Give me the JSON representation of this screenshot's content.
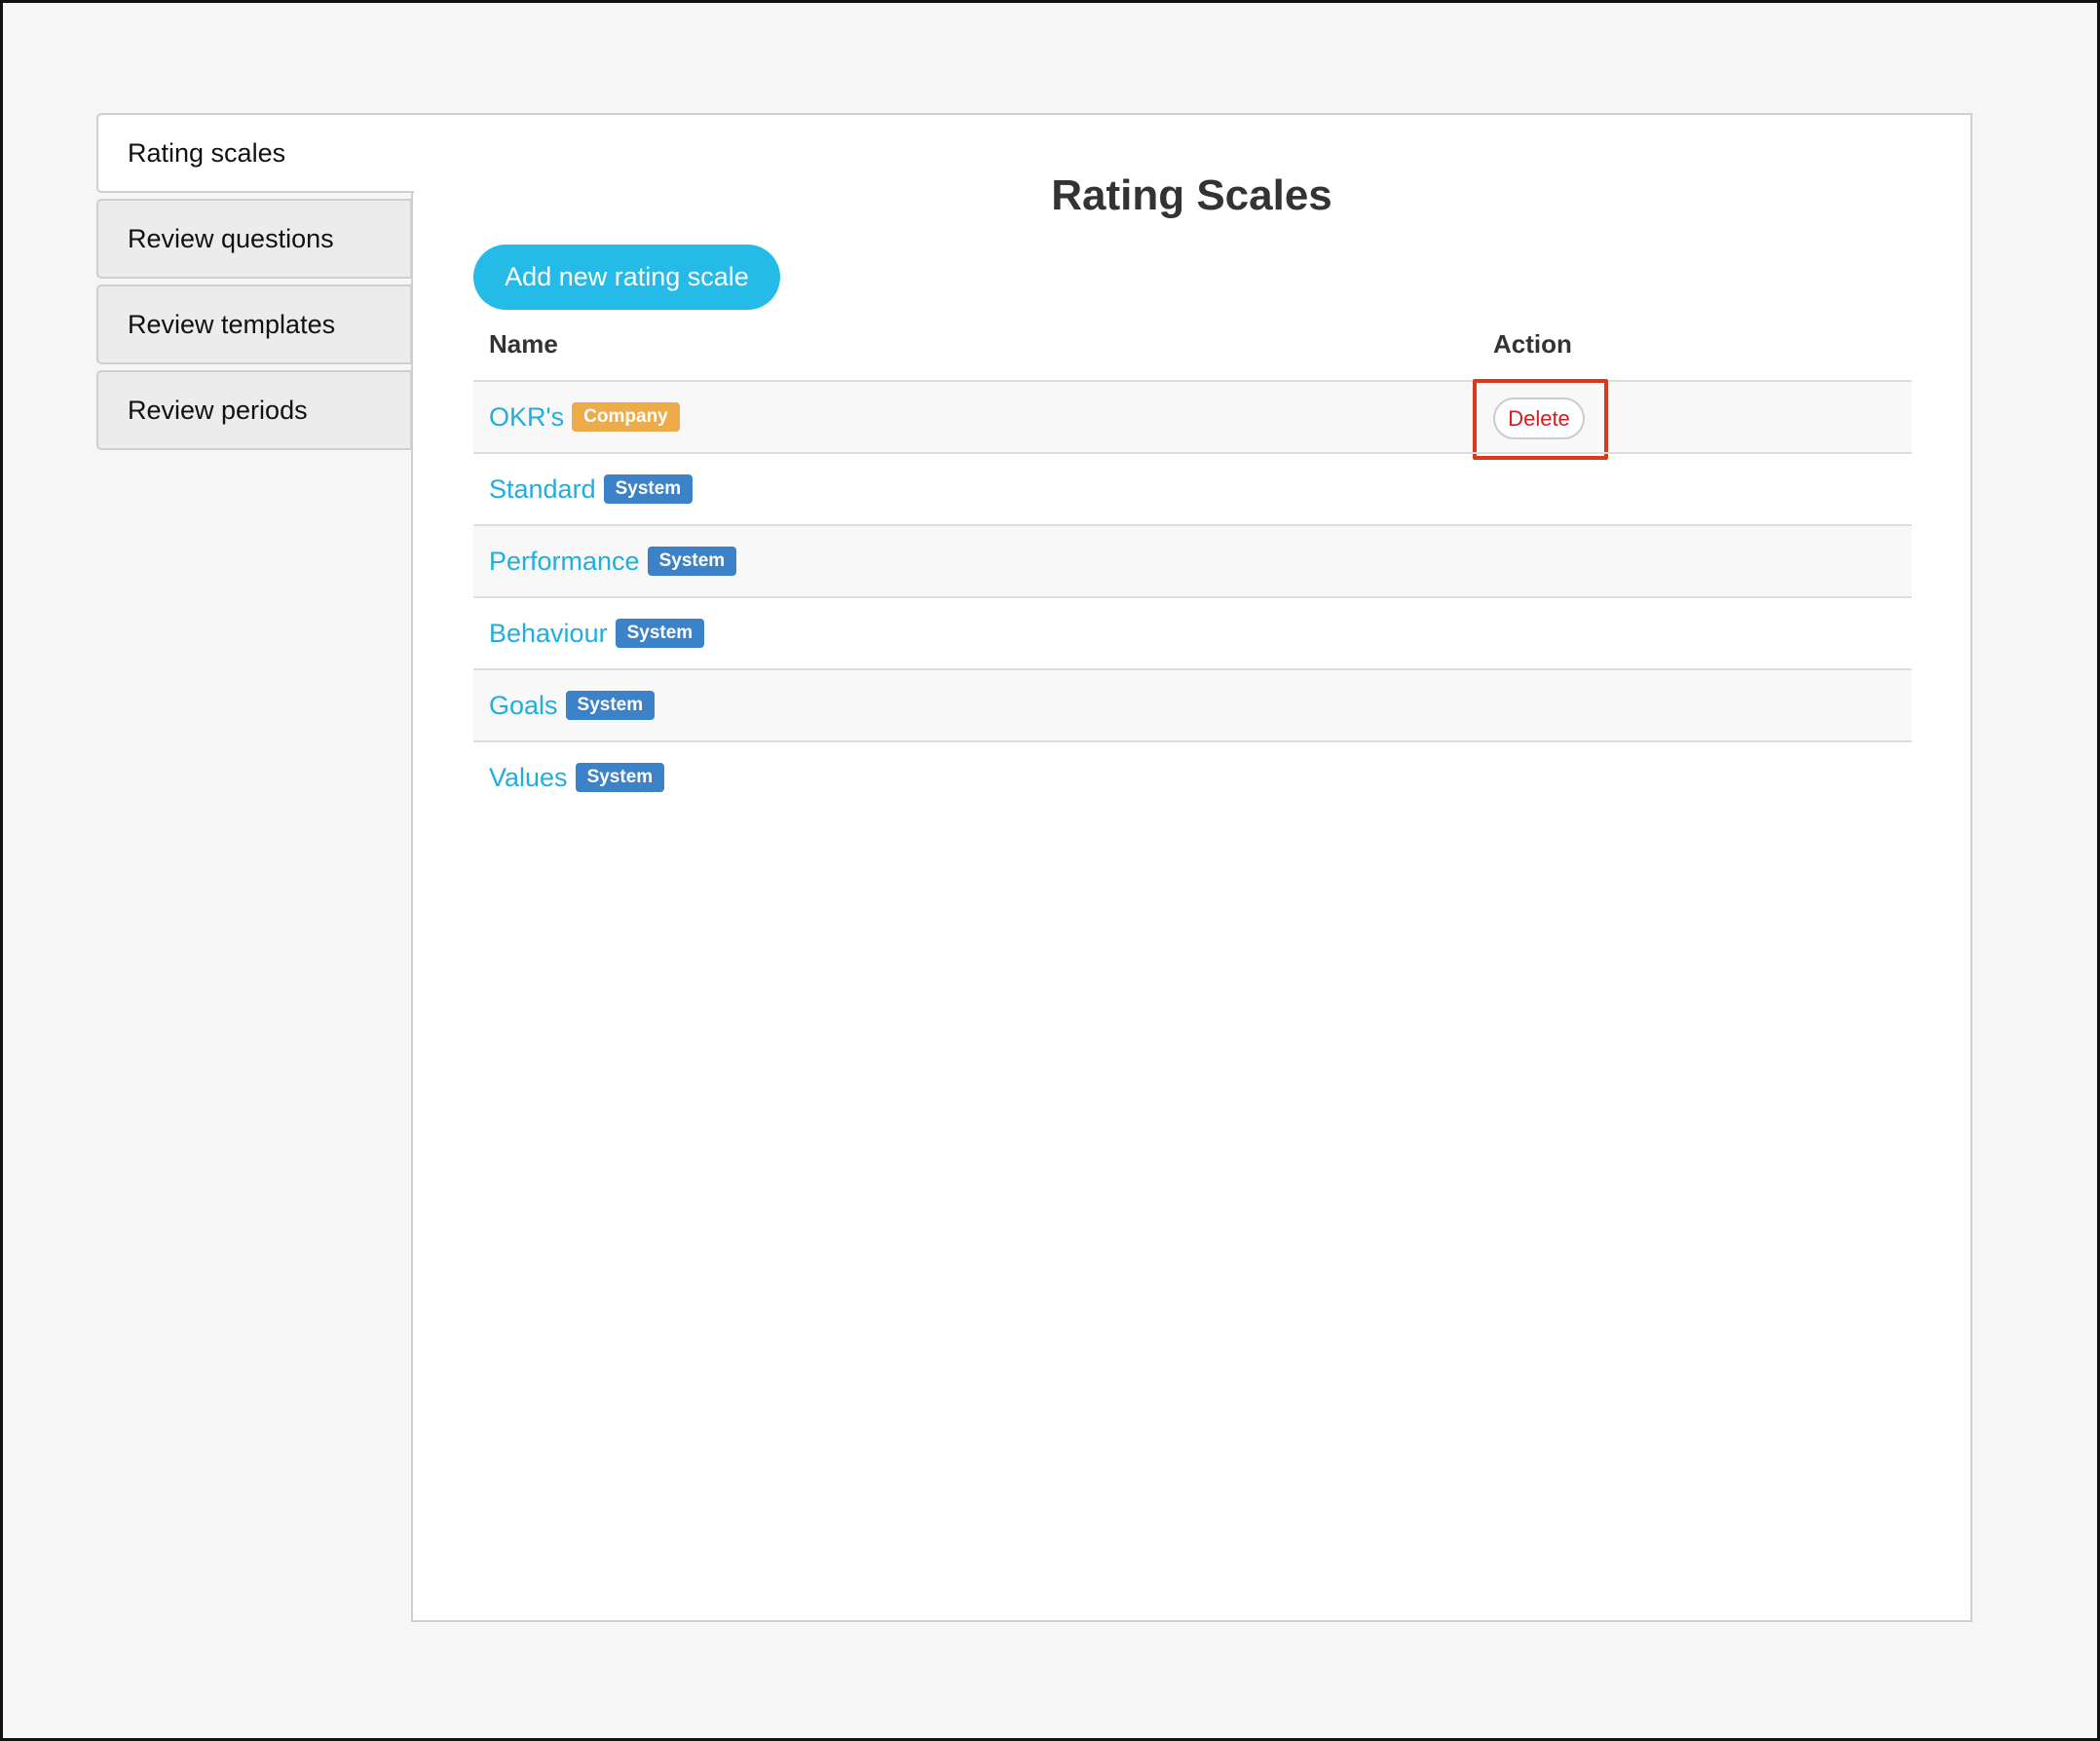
{
  "sidebar": {
    "items": [
      {
        "label": "Rating scales",
        "active": true
      },
      {
        "label": "Review questions"
      },
      {
        "label": "Review templates"
      },
      {
        "label": "Review periods"
      }
    ]
  },
  "main": {
    "title": "Rating Scales",
    "add_button": "Add new rating scale",
    "columns": {
      "name": "Name",
      "action": "Action"
    },
    "rows": [
      {
        "name": "OKR's",
        "badge": "Company",
        "badge_color": "#eeab4a",
        "action": "Delete"
      },
      {
        "name": "Standard",
        "badge": "System",
        "badge_color": "#3c82c8"
      },
      {
        "name": "Performance",
        "badge": "System",
        "badge_color": "#3c82c8"
      },
      {
        "name": "Behaviour",
        "badge": "System",
        "badge_color": "#3c82c8"
      },
      {
        "name": "Goals",
        "badge": "System",
        "badge_color": "#3c82c8"
      },
      {
        "name": "Values",
        "badge": "System",
        "badge_color": "#3c82c8"
      }
    ]
  },
  "colors": {
    "accent": "#25bbe9",
    "link": "#1eaee0",
    "delete": "#d81b1b",
    "highlight": "#d9391a"
  }
}
